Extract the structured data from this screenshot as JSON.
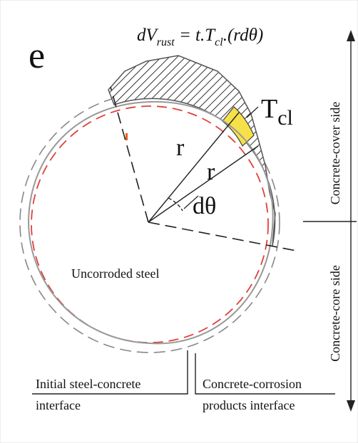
{
  "panel_label": "e",
  "formula": {
    "parts": [
      "dV",
      "rust",
      " = t.T",
      "cl",
      ".(rdθ)"
    ]
  },
  "thickness_label": {
    "main": "T",
    "sub": "cl"
  },
  "radius_labels": [
    "r",
    "r"
  ],
  "angle_label": "dθ",
  "core_label": "Uncorroded steel",
  "side_labels": [
    "Concrete-cover side",
    "Concrete-core side"
  ],
  "interfaces": [
    {
      "lines": [
        "Initial steel-concrete",
        "interface"
      ]
    },
    {
      "lines": [
        "Concrete-corrosion",
        "products interface"
      ]
    }
  ]
}
